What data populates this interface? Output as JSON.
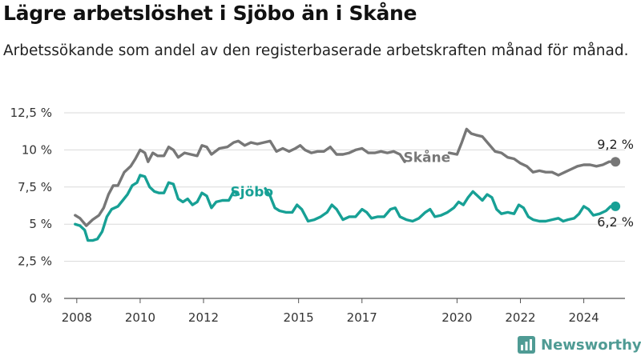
{
  "chart_data": {
    "type": "line",
    "title": "Lägre arbetslöshet i Sjöbo än i Skåne",
    "subtitle": "Arbetssökande som andel av den registerbaserade arbetskraften månad för månad.",
    "xlabel": "",
    "ylabel": "",
    "x_ticks": [
      "2008",
      "2010",
      "2012",
      "2015",
      "2017",
      "2020",
      "2022",
      "2024"
    ],
    "x_tick_years": [
      2008,
      2010,
      2012,
      2015,
      2017,
      2020,
      2022,
      2024
    ],
    "xlim": [
      2007.6,
      2025.3
    ],
    "ylim": [
      0,
      12.5
    ],
    "y_ticks": [
      {
        "value": 0,
        "label": "0 %"
      },
      {
        "value": 2.5,
        "label": "2,5 %"
      },
      {
        "value": 5,
        "label": "5 %"
      },
      {
        "value": 7.5,
        "label": "7,5 %"
      },
      {
        "value": 10,
        "label": "10 %"
      },
      {
        "value": 12.5,
        "label": "12,5 %"
      }
    ],
    "grid": true,
    "series": [
      {
        "name": "Skåne",
        "color": "#777777",
        "last_value_label": "9,2 %",
        "points": [
          [
            2007.95,
            5.6
          ],
          [
            2008.1,
            5.4
          ],
          [
            2008.3,
            4.9
          ],
          [
            2008.5,
            5.3
          ],
          [
            2008.7,
            5.6
          ],
          [
            2008.85,
            6.1
          ],
          [
            2009.0,
            7.0
          ],
          [
            2009.15,
            7.6
          ],
          [
            2009.3,
            7.6
          ],
          [
            2009.5,
            8.5
          ],
          [
            2009.7,
            8.9
          ],
          [
            2009.85,
            9.4
          ],
          [
            2010.0,
            10.0
          ],
          [
            2010.15,
            9.8
          ],
          [
            2010.25,
            9.2
          ],
          [
            2010.4,
            9.8
          ],
          [
            2010.55,
            9.6
          ],
          [
            2010.75,
            9.6
          ],
          [
            2010.9,
            10.2
          ],
          [
            2011.05,
            10.0
          ],
          [
            2011.2,
            9.5
          ],
          [
            2011.4,
            9.8
          ],
          [
            2011.6,
            9.7
          ],
          [
            2011.8,
            9.6
          ],
          [
            2011.95,
            10.3
          ],
          [
            2012.1,
            10.2
          ],
          [
            2012.25,
            9.7
          ],
          [
            2012.5,
            10.1
          ],
          [
            2012.75,
            10.2
          ],
          [
            2012.95,
            10.5
          ],
          [
            2013.1,
            10.6
          ],
          [
            2013.3,
            10.3
          ],
          [
            2013.5,
            10.5
          ],
          [
            2013.7,
            10.4
          ],
          [
            2013.9,
            10.5
          ],
          [
            2014.1,
            10.6
          ],
          [
            2014.3,
            9.9
          ],
          [
            2014.5,
            10.1
          ],
          [
            2014.7,
            9.9
          ],
          [
            2014.9,
            10.1
          ],
          [
            2015.05,
            10.3
          ],
          [
            2015.2,
            10.0
          ],
          [
            2015.4,
            9.8
          ],
          [
            2015.6,
            9.9
          ],
          [
            2015.8,
            9.9
          ],
          [
            2016.0,
            10.2
          ],
          [
            2016.2,
            9.7
          ],
          [
            2016.4,
            9.7
          ],
          [
            2016.6,
            9.8
          ],
          [
            2016.8,
            10.0
          ],
          [
            2017.0,
            10.1
          ],
          [
            2017.2,
            9.8
          ],
          [
            2017.4,
            9.8
          ],
          [
            2017.6,
            9.9
          ],
          [
            2017.8,
            9.8
          ],
          [
            2018.0,
            9.9
          ],
          [
            2018.2,
            9.7
          ],
          [
            2018.35,
            9.2
          ]
        ],
        "points_after_gap": [
          [
            2019.75,
            9.8
          ],
          [
            2020.0,
            9.7
          ],
          [
            2020.15,
            10.5
          ],
          [
            2020.3,
            11.4
          ],
          [
            2020.45,
            11.1
          ],
          [
            2020.6,
            11.0
          ],
          [
            2020.8,
            10.9
          ],
          [
            2021.0,
            10.4
          ],
          [
            2021.2,
            9.9
          ],
          [
            2021.4,
            9.8
          ],
          [
            2021.6,
            9.5
          ],
          [
            2021.8,
            9.4
          ],
          [
            2022.0,
            9.1
          ],
          [
            2022.2,
            8.9
          ],
          [
            2022.4,
            8.5
          ],
          [
            2022.6,
            8.6
          ],
          [
            2022.8,
            8.5
          ],
          [
            2023.0,
            8.5
          ],
          [
            2023.2,
            8.3
          ],
          [
            2023.4,
            8.5
          ],
          [
            2023.6,
            8.7
          ],
          [
            2023.8,
            8.9
          ],
          [
            2024.0,
            9.0
          ],
          [
            2024.2,
            9.0
          ],
          [
            2024.4,
            8.9
          ],
          [
            2024.6,
            9.0
          ],
          [
            2024.8,
            9.2
          ],
          [
            2025.0,
            9.2
          ]
        ]
      },
      {
        "name": "Sjöbo",
        "color": "#17a095",
        "last_value_label": "6,2 %",
        "points": [
          [
            2007.95,
            5.0
          ],
          [
            2008.1,
            4.9
          ],
          [
            2008.25,
            4.6
          ],
          [
            2008.35,
            3.9
          ],
          [
            2008.5,
            3.9
          ],
          [
            2008.65,
            4.0
          ],
          [
            2008.8,
            4.5
          ],
          [
            2008.95,
            5.5
          ],
          [
            2009.1,
            6.0
          ],
          [
            2009.3,
            6.2
          ],
          [
            2009.45,
            6.6
          ],
          [
            2009.6,
            7.0
          ],
          [
            2009.75,
            7.6
          ],
          [
            2009.9,
            7.8
          ],
          [
            2010.0,
            8.3
          ],
          [
            2010.15,
            8.2
          ],
          [
            2010.3,
            7.5
          ],
          [
            2010.45,
            7.2
          ],
          [
            2010.6,
            7.1
          ],
          [
            2010.75,
            7.1
          ],
          [
            2010.9,
            7.8
          ],
          [
            2011.05,
            7.7
          ],
          [
            2011.2,
            6.7
          ],
          [
            2011.35,
            6.5
          ],
          [
            2011.5,
            6.7
          ],
          [
            2011.65,
            6.3
          ],
          [
            2011.8,
            6.5
          ],
          [
            2011.95,
            7.1
          ],
          [
            2012.1,
            6.9
          ],
          [
            2012.25,
            6.1
          ],
          [
            2012.4,
            6.5
          ],
          [
            2012.6,
            6.6
          ],
          [
            2012.8,
            6.6
          ],
          [
            2012.95,
            7.2
          ],
          [
            2013.1,
            7.0
          ]
        ],
        "points_after_gap": [
          [
            2013.95,
            7.4
          ],
          [
            2014.1,
            6.9
          ],
          [
            2014.25,
            6.1
          ],
          [
            2014.4,
            5.9
          ],
          [
            2014.6,
            5.8
          ],
          [
            2014.8,
            5.8
          ],
          [
            2014.95,
            6.3
          ],
          [
            2015.1,
            6.0
          ],
          [
            2015.3,
            5.2
          ],
          [
            2015.5,
            5.3
          ],
          [
            2015.7,
            5.5
          ],
          [
            2015.9,
            5.8
          ],
          [
            2016.05,
            6.3
          ],
          [
            2016.2,
            6.0
          ],
          [
            2016.4,
            5.3
          ],
          [
            2016.6,
            5.5
          ],
          [
            2016.8,
            5.5
          ],
          [
            2017.0,
            6.0
          ],
          [
            2017.15,
            5.8
          ],
          [
            2017.3,
            5.4
          ],
          [
            2017.5,
            5.5
          ],
          [
            2017.7,
            5.5
          ],
          [
            2017.9,
            6.0
          ],
          [
            2018.05,
            6.1
          ],
          [
            2018.2,
            5.5
          ],
          [
            2018.4,
            5.3
          ],
          [
            2018.6,
            5.2
          ],
          [
            2018.8,
            5.4
          ],
          [
            2019.0,
            5.8
          ],
          [
            2019.15,
            6.0
          ],
          [
            2019.3,
            5.5
          ],
          [
            2019.5,
            5.6
          ],
          [
            2019.7,
            5.8
          ],
          [
            2019.9,
            6.1
          ],
          [
            2020.05,
            6.5
          ],
          [
            2020.2,
            6.3
          ],
          [
            2020.35,
            6.8
          ],
          [
            2020.5,
            7.2
          ],
          [
            2020.65,
            6.9
          ],
          [
            2020.8,
            6.6
          ],
          [
            2020.95,
            7.0
          ],
          [
            2021.1,
            6.8
          ],
          [
            2021.25,
            6.0
          ],
          [
            2021.4,
            5.7
          ],
          [
            2021.6,
            5.8
          ],
          [
            2021.8,
            5.7
          ],
          [
            2021.95,
            6.3
          ],
          [
            2022.1,
            6.1
          ],
          [
            2022.25,
            5.5
          ],
          [
            2022.4,
            5.3
          ],
          [
            2022.6,
            5.2
          ],
          [
            2022.8,
            5.2
          ],
          [
            2023.0,
            5.3
          ],
          [
            2023.2,
            5.4
          ],
          [
            2023.35,
            5.2
          ],
          [
            2023.5,
            5.3
          ],
          [
            2023.7,
            5.4
          ],
          [
            2023.85,
            5.7
          ],
          [
            2024.0,
            6.2
          ],
          [
            2024.15,
            6.0
          ],
          [
            2024.3,
            5.6
          ],
          [
            2024.5,
            5.7
          ],
          [
            2024.7,
            5.9
          ],
          [
            2024.85,
            6.2
          ],
          [
            2025.0,
            6.2
          ]
        ]
      }
    ]
  },
  "brand": {
    "name": "Newsworthy",
    "color": "#4f9b94",
    "icon": "bar-chart-icon"
  }
}
